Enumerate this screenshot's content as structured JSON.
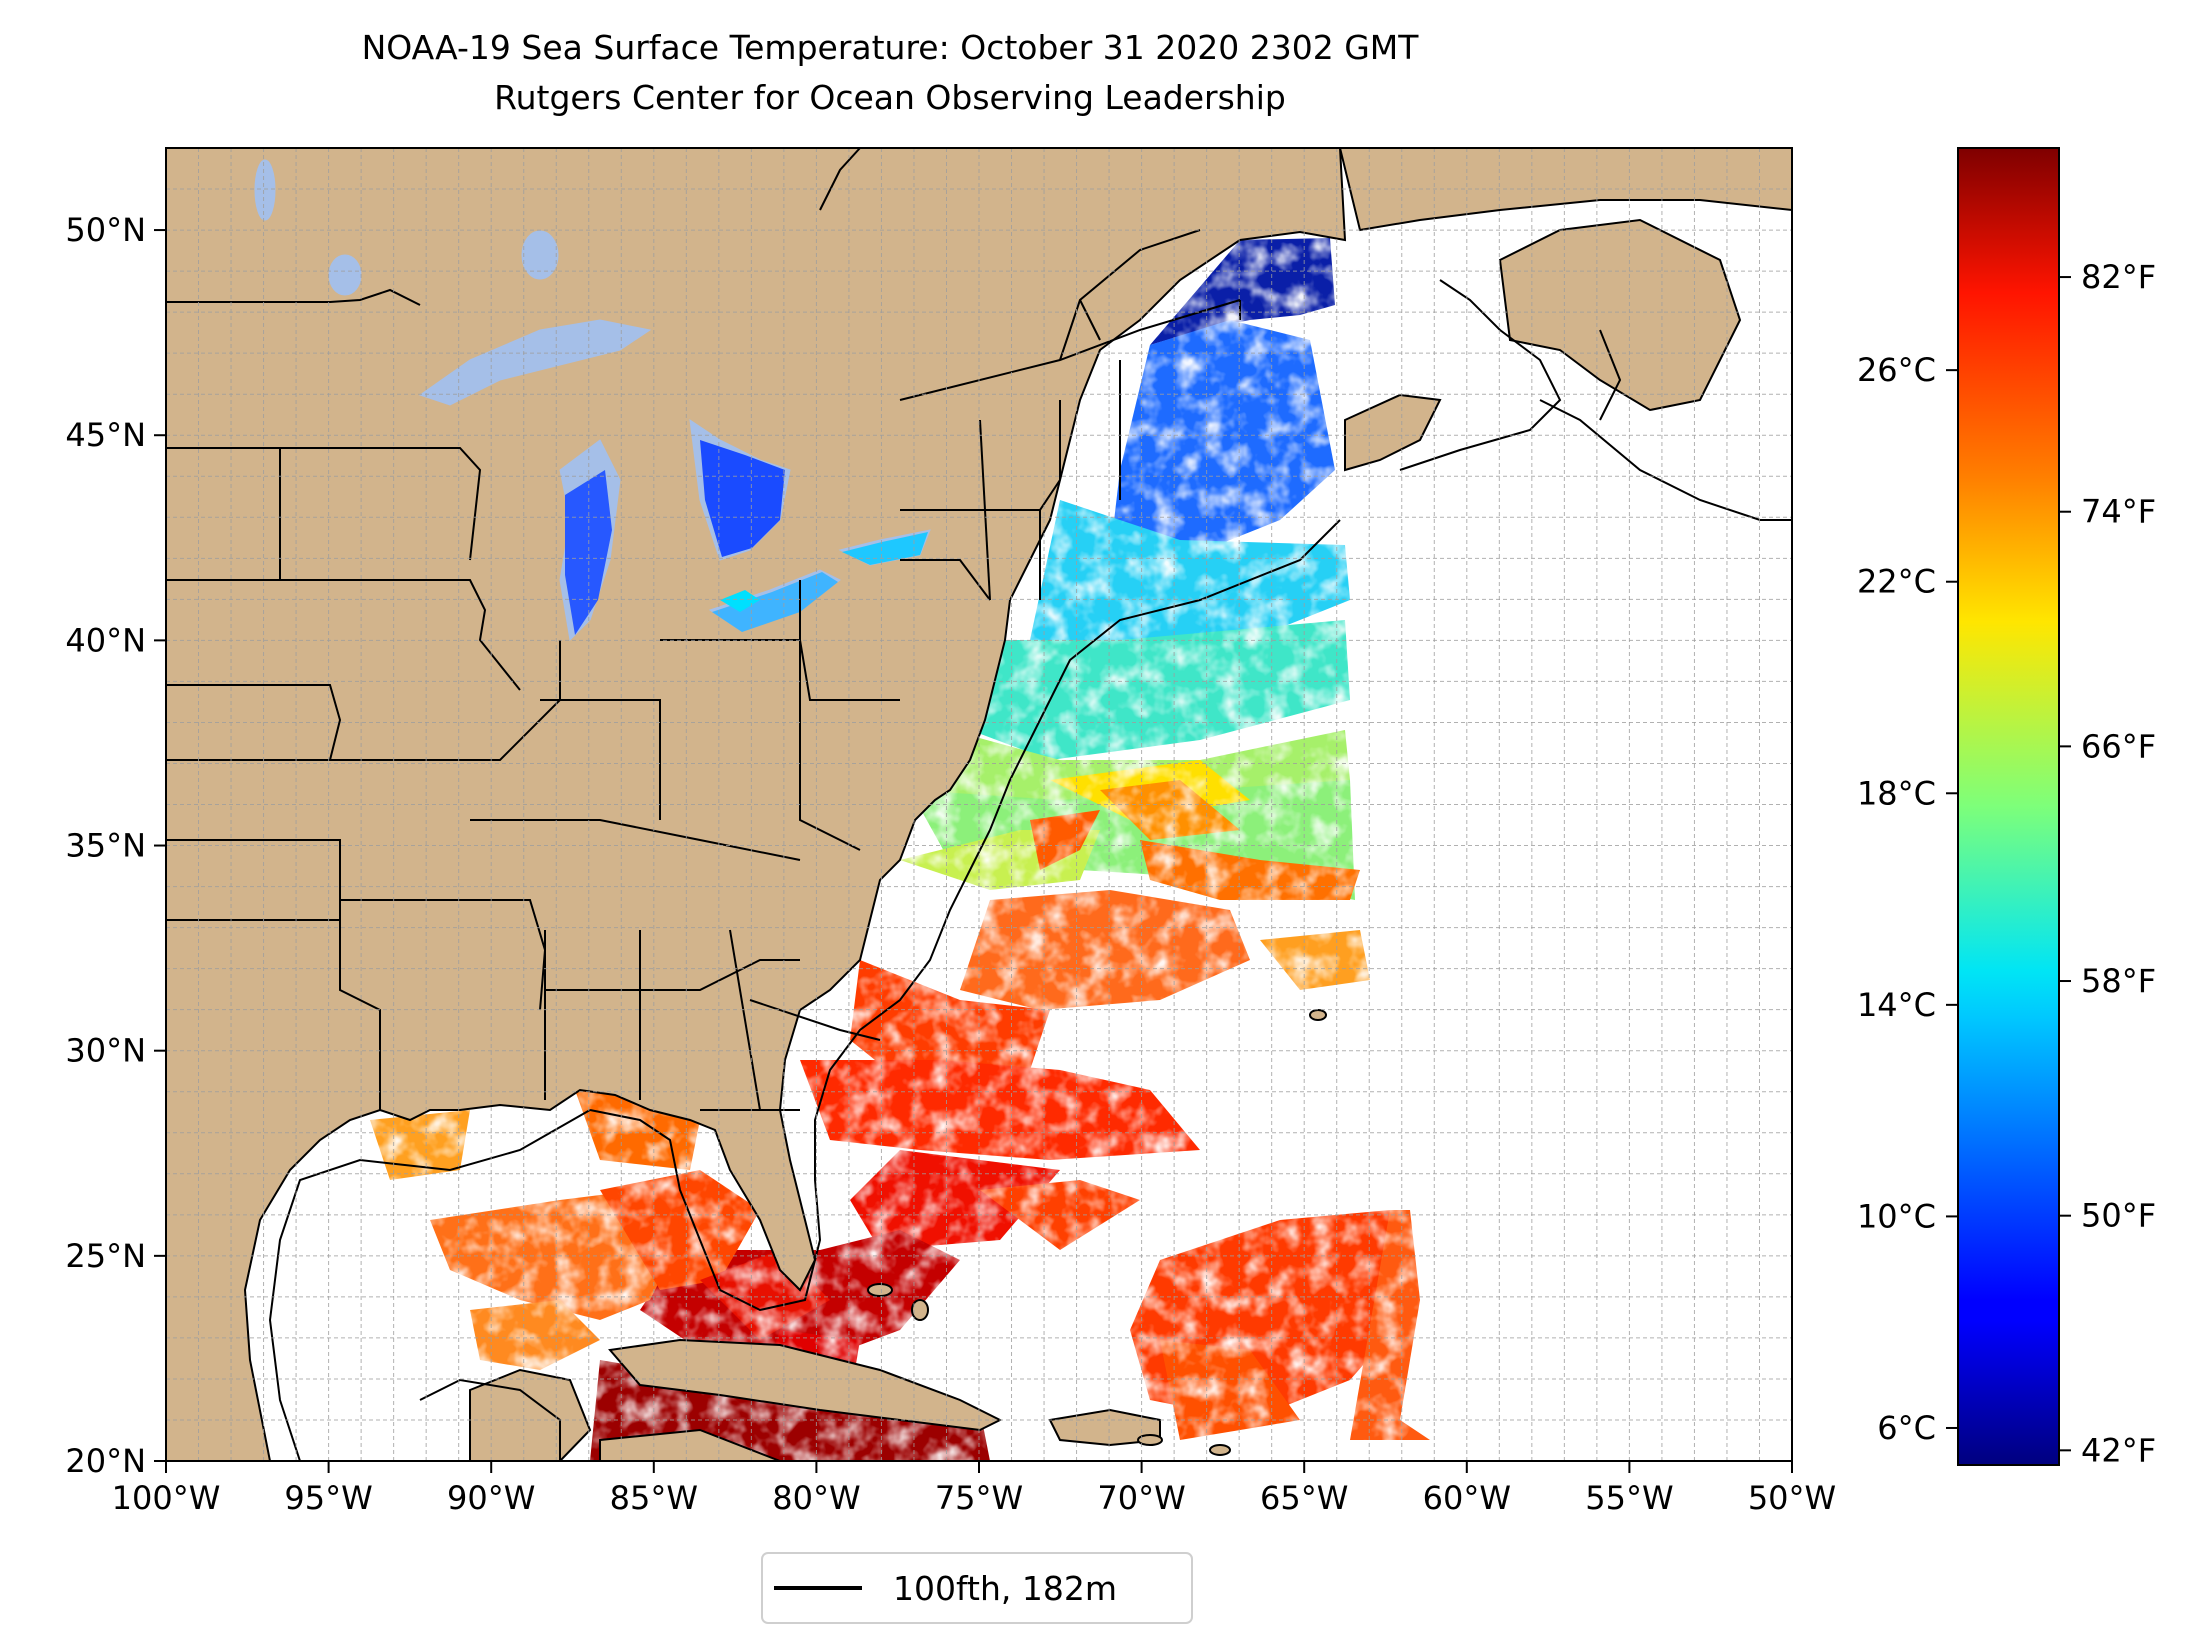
{
  "title_line1": "NOAA-19 Sea Surface Temperature: October 31 2020 2302 GMT",
  "title_line2": "Rutgers Center for Ocean Observing Leadership",
  "map": {
    "lon_range": [
      -100,
      -50
    ],
    "lat_range": [
      20,
      52
    ],
    "x_ticks": [
      {
        "lon": -100,
        "label": "100°W"
      },
      {
        "lon": -95,
        "label": "95°W"
      },
      {
        "lon": -90,
        "label": "90°W"
      },
      {
        "lon": -85,
        "label": "85°W"
      },
      {
        "lon": -80,
        "label": "80°W"
      },
      {
        "lon": -75,
        "label": "75°W"
      },
      {
        "lon": -70,
        "label": "70°W"
      },
      {
        "lon": -65,
        "label": "65°W"
      },
      {
        "lon": -60,
        "label": "60°W"
      },
      {
        "lon": -55,
        "label": "55°W"
      },
      {
        "lon": -50,
        "label": "50°W"
      }
    ],
    "y_ticks": [
      {
        "lat": 20,
        "label": "20°N"
      },
      {
        "lat": 25,
        "label": "25°N"
      },
      {
        "lat": 30,
        "label": "30°N"
      },
      {
        "lat": 35,
        "label": "35°N"
      },
      {
        "lat": 40,
        "label": "40°N"
      },
      {
        "lat": 45,
        "label": "45°N"
      },
      {
        "lat": 50,
        "label": "50°N"
      }
    ],
    "grid": true,
    "colors": {
      "land": "#d2b48c",
      "lakes": "#a5bfe8",
      "coast": "#000000",
      "grid": "#b0b0b0"
    }
  },
  "legend": {
    "label": "100fth, 182m",
    "placement": "bottom-center"
  },
  "colorbar": {
    "cmap": "jet",
    "celsius_ticks": [
      {
        "value": 6,
        "label": "6°C"
      },
      {
        "value": 10,
        "label": "10°C"
      },
      {
        "value": 14,
        "label": "14°C"
      },
      {
        "value": 18,
        "label": "18°C"
      },
      {
        "value": 22,
        "label": "22°C"
      },
      {
        "value": 26,
        "label": "26°C"
      }
    ],
    "fahrenheit_ticks": [
      {
        "value": 42,
        "label": "42°F"
      },
      {
        "value": 50,
        "label": "50°F"
      },
      {
        "value": 58,
        "label": "58°F"
      },
      {
        "value": 66,
        "label": "66°F"
      },
      {
        "value": 74,
        "label": "74°F"
      },
      {
        "value": 82,
        "label": "82°F"
      }
    ],
    "range_celsius": [
      5.3,
      30.2
    ],
    "range_fahrenheit": [
      41.5,
      86.4
    ]
  }
}
